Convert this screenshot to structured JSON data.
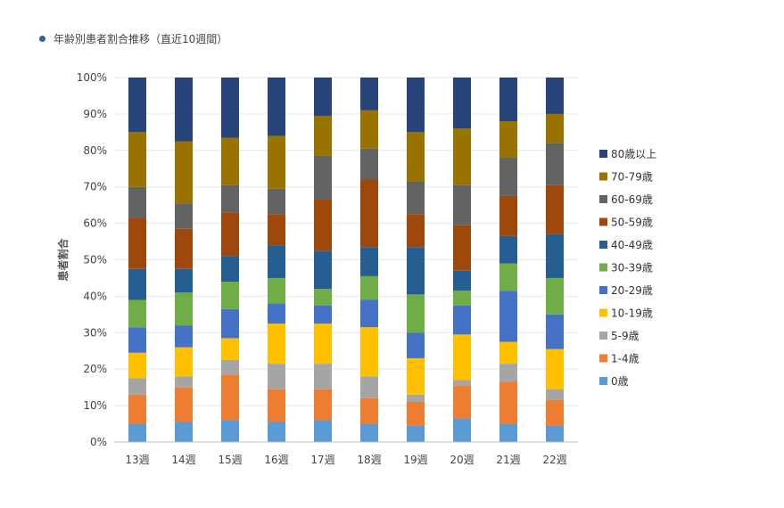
{
  "header": {
    "title": "年齢別患者割合推移（直近10週間）"
  },
  "chart_data": {
    "type": "bar",
    "stacked": true,
    "ylabel": "患者割合",
    "ylim": [
      0,
      100
    ],
    "yticks": [
      "0%",
      "10%",
      "20%",
      "30%",
      "40%",
      "50%",
      "60%",
      "70%",
      "80%",
      "90%",
      "100%"
    ],
    "categories": [
      "13週",
      "14週",
      "15週",
      "16週",
      "17週",
      "18週",
      "19週",
      "20週",
      "21週",
      "22週"
    ],
    "legend_position": "right",
    "grid": true,
    "series": [
      {
        "name": "0歳",
        "color": "#5b9bd5",
        "values": [
          5,
          5.5,
          6,
          5.5,
          6,
          5,
          4.5,
          6.5,
          5,
          4.5
        ]
      },
      {
        "name": "1-4歳",
        "color": "#ed7d31",
        "values": [
          8,
          9.5,
          12.5,
          9,
          8.5,
          7,
          6.5,
          9,
          11.5,
          7
        ]
      },
      {
        "name": "5-9歳",
        "color": "#a5a5a5",
        "values": [
          4.5,
          3,
          4,
          7,
          7,
          6,
          2,
          1.5,
          5,
          3
        ]
      },
      {
        "name": "10-19歳",
        "color": "#ffc000",
        "values": [
          7,
          8,
          6,
          11,
          11,
          13.5,
          10,
          12.5,
          6,
          11
        ]
      },
      {
        "name": "20-29歳",
        "color": "#4472c4",
        "values": [
          7,
          6,
          8,
          5.5,
          5,
          7.5,
          7,
          8,
          14,
          9.5
        ]
      },
      {
        "name": "30-39歳",
        "color": "#70ad47",
        "values": [
          7.5,
          9,
          7.5,
          7,
          4.5,
          6.5,
          10.5,
          4,
          7.5,
          10
        ]
      },
      {
        "name": "40-49歳",
        "color": "#255e91",
        "values": [
          8.5,
          6.5,
          7,
          9,
          10.5,
          8,
          13,
          5.5,
          7.5,
          12
        ]
      },
      {
        "name": "50-59歳",
        "color": "#9e480e",
        "values": [
          14,
          11,
          12,
          8.5,
          14,
          18.5,
          9,
          12.5,
          11,
          13.5
        ]
      },
      {
        "name": "60-69歳",
        "color": "#636363",
        "values": [
          8.5,
          7,
          7.5,
          7,
          12,
          8.5,
          9,
          11,
          10.5,
          11.5
        ]
      },
      {
        "name": "70-79歳",
        "color": "#997300",
        "values": [
          15,
          17,
          13,
          14.5,
          11,
          10.5,
          13.5,
          15.5,
          10,
          8
        ]
      },
      {
        "name": "80歳以上",
        "color": "#264478",
        "values": [
          15,
          17.5,
          16.5,
          16,
          10.5,
          9,
          15,
          14,
          12,
          10
        ]
      }
    ]
  }
}
